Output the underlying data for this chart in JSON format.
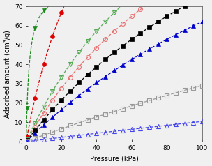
{
  "title": "",
  "xlabel": "Pressure (kPa)",
  "ylabel": "Adsorbed amount (cm³/g)",
  "xlim": [
    0,
    100
  ],
  "ylim": [
    0,
    70
  ],
  "xticks": [
    0,
    20,
    40,
    60,
    80,
    100
  ],
  "yticks": [
    0,
    10,
    20,
    30,
    40,
    50,
    60,
    70
  ],
  "series": [
    {
      "label": "dark_green_filled_down",
      "color": "#1a8a1a",
      "marker": "v",
      "filled": true,
      "q_max": 80.0,
      "K": 0.55,
      "markevery": 2
    },
    {
      "label": "red_filled_circle",
      "color": "#e00000",
      "marker": "o",
      "filled": true,
      "q_max": 200.0,
      "K": 0.025,
      "markevery": 3
    },
    {
      "label": "light_green_open_down",
      "color": "#55aa55",
      "marker": "v",
      "filled": false,
      "q_max": 200.0,
      "K": 0.01,
      "markevery": 3
    },
    {
      "label": "pink_open_circle",
      "color": "#e87070",
      "marker": "o",
      "filled": false,
      "q_max": 200.0,
      "K": 0.008,
      "markevery": 3
    },
    {
      "label": "black_filled_square",
      "color": "#000000",
      "marker": "s",
      "filled": true,
      "q_max": 200.0,
      "K": 0.006,
      "markevery": 3
    },
    {
      "label": "blue_filled_triangle",
      "color": "#0000cc",
      "marker": "^",
      "filled": true,
      "q_max": 200.0,
      "K": 0.0045,
      "markevery": 3
    },
    {
      "label": "gray_open_square",
      "color": "#999999",
      "marker": "s",
      "filled": false,
      "q_max": 200.0,
      "K": 0.0017,
      "markevery": 4
    },
    {
      "label": "blue_open_triangle",
      "color": "#4444ee",
      "marker": "^",
      "filled": false,
      "q_max": 200.0,
      "K": 0.00055,
      "markevery": 4
    }
  ],
  "background_color": "#f0f0f0",
  "linewidth": 0.9,
  "markersize": 4.2
}
